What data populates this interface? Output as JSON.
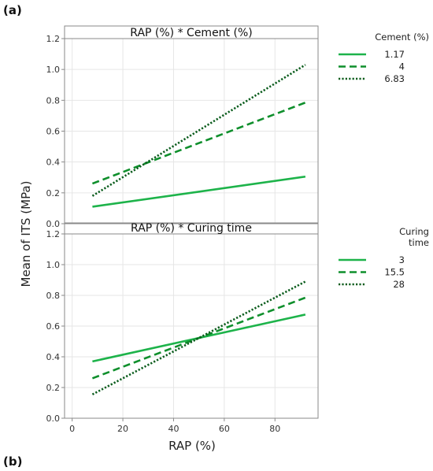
{
  "figure_labels": {
    "top": "(a)",
    "bottom": "(b)"
  },
  "chart_data": {
    "type": "line",
    "shared_x": {
      "label": "RAP (%)",
      "range": [
        -3,
        97
      ],
      "ticks": [
        0,
        20,
        40,
        60,
        80
      ]
    },
    "shared_y": {
      "label": "Mean of ITS (MPa)"
    },
    "panels": [
      {
        "title": "RAP (%) * Cement (%)",
        "ylim": [
          0.0,
          1.2
        ],
        "yticks": [
          0.0,
          0.2,
          0.4,
          0.6,
          0.8,
          1.0,
          1.2
        ],
        "ytick_labels": [
          "0.0",
          "0.2",
          "0.4",
          "0.6",
          "0.8",
          "1.0",
          "1.2"
        ],
        "legend": {
          "title_lines": [
            "Cement (%)"
          ],
          "placement": "right"
        },
        "series": [
          {
            "name": "1.17",
            "style": "solid",
            "x": [
              8,
              92
            ],
            "y": [
              0.11,
              0.305
            ]
          },
          {
            "name": "4",
            "style": "dashed",
            "x": [
              8,
              92
            ],
            "y": [
              0.26,
              0.785
            ]
          },
          {
            "name": "6.83",
            "style": "dotted",
            "x": [
              8,
              92
            ],
            "y": [
              0.18,
              1.03
            ]
          }
        ]
      },
      {
        "title": "RAP (%) * Curing time",
        "ylim": [
          0.0,
          1.2
        ],
        "yticks": [
          0.0,
          0.2,
          0.4,
          0.6,
          0.8,
          1.0,
          1.2
        ],
        "ytick_labels": [
          "0.0",
          "0.2",
          "0.4",
          "0.6",
          "0.8",
          "1.0",
          "1.2"
        ],
        "legend": {
          "title_lines": [
            "Curing",
            "time"
          ],
          "placement": "right"
        },
        "series": [
          {
            "name": "3",
            "style": "solid",
            "x": [
              8,
              92
            ],
            "y": [
              0.37,
              0.675
            ]
          },
          {
            "name": "15.5",
            "style": "dashed",
            "x": [
              8,
              92
            ],
            "y": [
              0.26,
              0.785
            ]
          },
          {
            "name": "28",
            "style": "dotted",
            "x": [
              8,
              92
            ],
            "y": [
              0.155,
              0.89
            ]
          }
        ]
      }
    ],
    "grid": true
  },
  "colors": {
    "solid": "#1db34a",
    "dashed": "#0f8f2c",
    "dotted": "#0a5c1c",
    "grid": "#e6e6e6",
    "frame": "#8a8a8a"
  }
}
